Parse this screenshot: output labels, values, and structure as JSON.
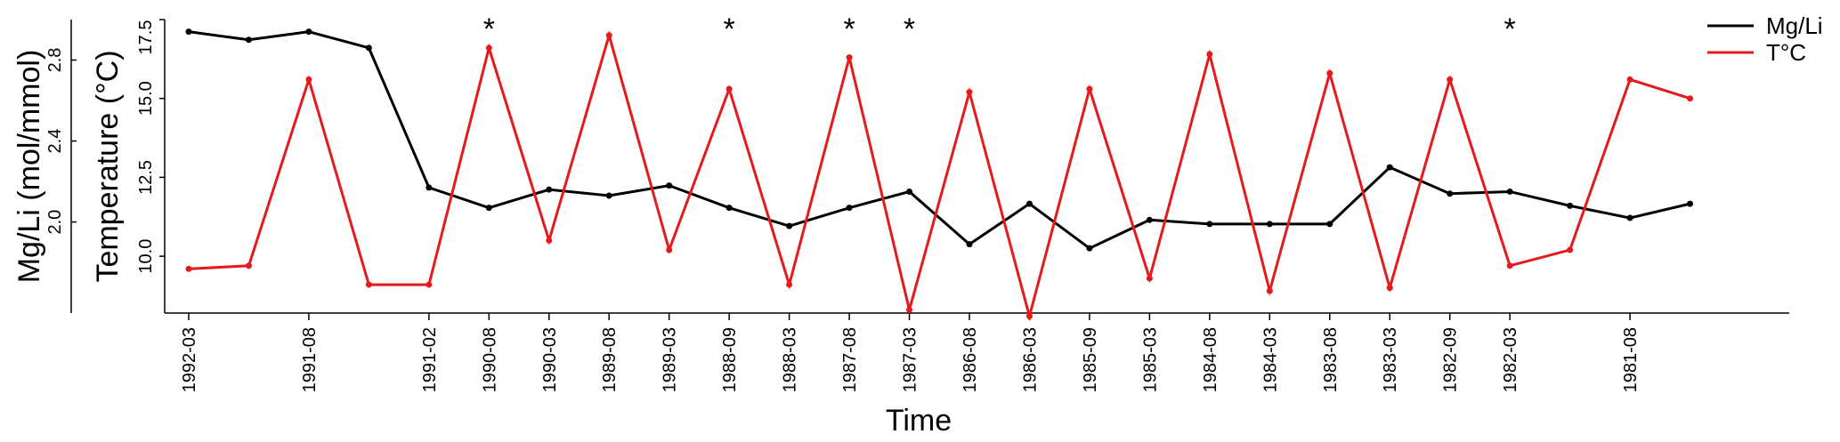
{
  "chart_data": {
    "type": "line",
    "xlabel": "Time",
    "ylabel_left": "Mg/Li (mol/mmol)",
    "ylabel_right": "Temperature (°C)",
    "mgli_ticks": [
      "2.0",
      "2.4",
      "2.8"
    ],
    "temp_ticks": [
      "10.0",
      "12.5",
      "15.0",
      "17.5"
    ],
    "mgli_lim": [
      1.55,
      3.0
    ],
    "temp_lim": [
      8.2,
      17.5
    ],
    "x_tick_labels": [
      "1992-03",
      "1991-08",
      "1991-02",
      "1990-08",
      "1990-03",
      "1989-08",
      "1989-03",
      "1988-09",
      "1988-03",
      "1987-08",
      "1987-03",
      "1986-08",
      "1986-03",
      "1985-09",
      "1985-03",
      "1984-08",
      "1984-03",
      "1983-08",
      "1983-03",
      "1982-09",
      "1982-03",
      "1981-08"
    ],
    "x_tick_index": [
      0,
      2,
      4,
      5,
      6,
      7,
      8,
      9,
      10,
      11,
      12,
      13,
      14,
      15,
      16,
      17,
      18,
      19,
      20,
      21,
      22,
      24
    ],
    "n_points": 27,
    "significant_labels": [
      "1990-08",
      "1988-09",
      "1987-08",
      "1987-03",
      "1982-03"
    ],
    "star_symbol": "*",
    "series": [
      {
        "name": "Mg/Li",
        "color": "#000000",
        "values": [
          2.94,
          2.9,
          2.94,
          2.86,
          2.17,
          2.07,
          2.16,
          2.13,
          2.18,
          2.07,
          1.98,
          2.07,
          2.15,
          1.89,
          2.09,
          1.87,
          2.01,
          1.99,
          1.99,
          1.99,
          2.27,
          2.14,
          2.15,
          2.08,
          2.02,
          2.09,
          null
        ]
      },
      {
        "name": "T°C",
        "color": "#e41a1c",
        "values": [
          9.6,
          9.7,
          15.6,
          9.1,
          9.1,
          16.6,
          10.5,
          17.0,
          10.2,
          15.3,
          9.1,
          16.3,
          8.3,
          15.2,
          8.1,
          15.3,
          9.3,
          16.4,
          8.9,
          15.8,
          9.0,
          15.6,
          9.7,
          10.2,
          15.6,
          15.0,
          null
        ]
      }
    ],
    "legend_position": "top-right",
    "grid": false
  }
}
